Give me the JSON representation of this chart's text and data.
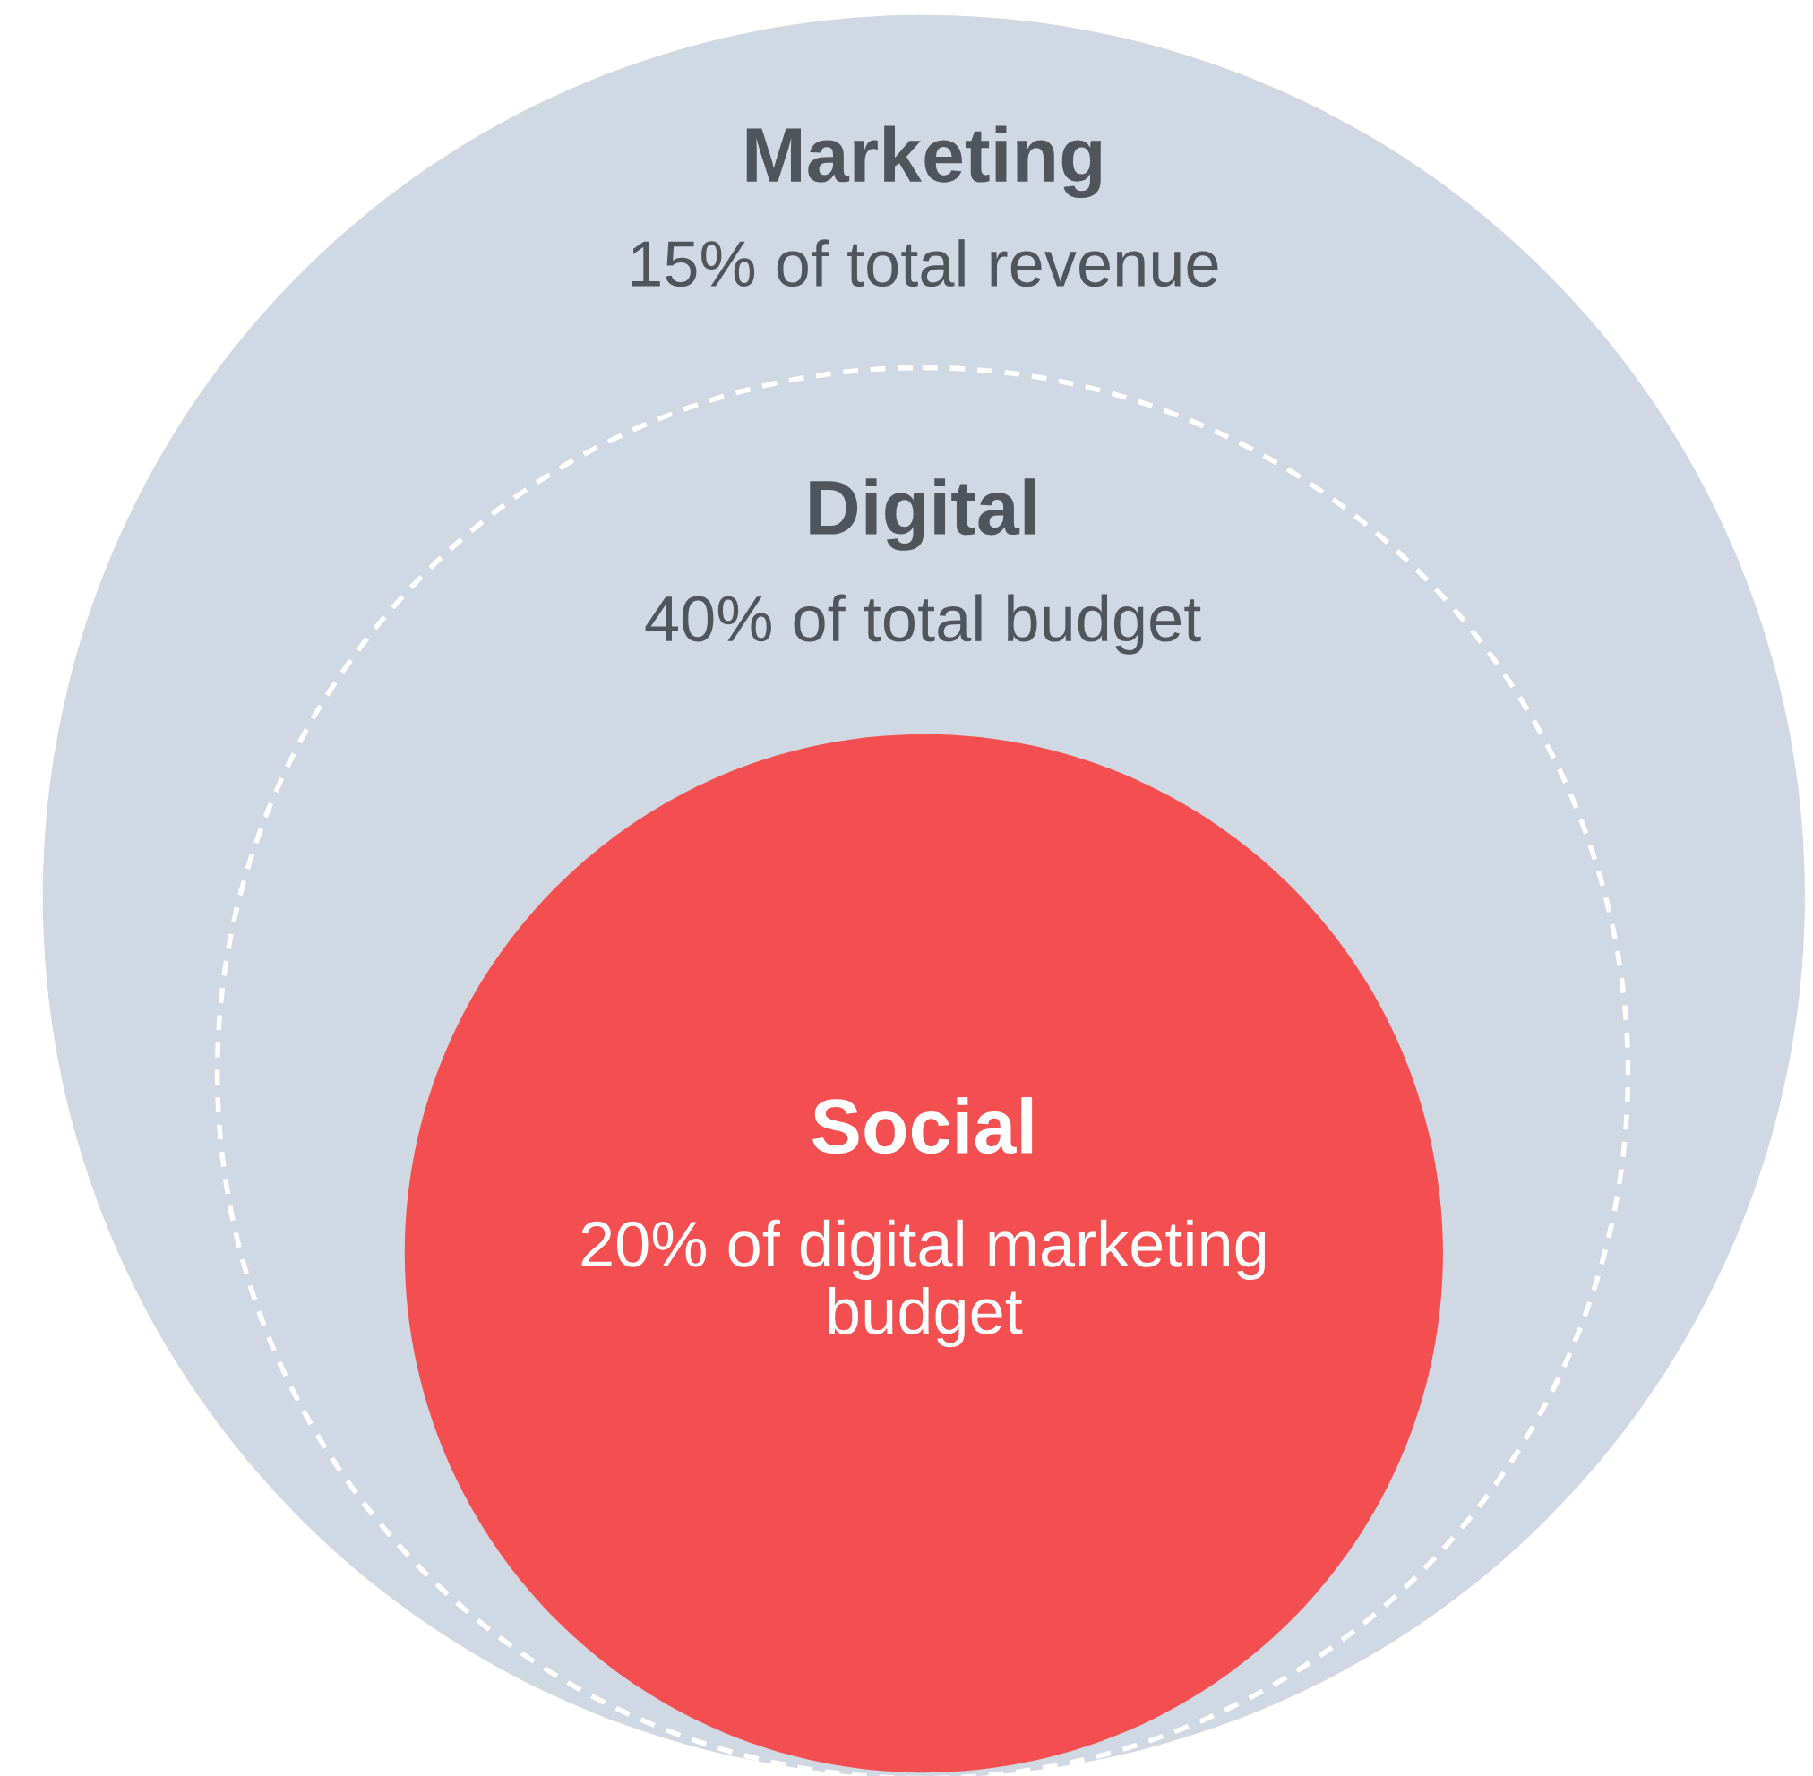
{
  "chart_data": {
    "type": "other",
    "categories": [
      "Marketing",
      "Digital",
      "Social"
    ],
    "value_labels": [
      "15% of total revenue",
      "40% of total budget",
      "20% of digital marketing\nbudget"
    ],
    "values": [
      15,
      40,
      20
    ],
    "colors": [
      "#d0d8e3",
      "#d0d8e3",
      "#f44f50"
    ]
  }
}
